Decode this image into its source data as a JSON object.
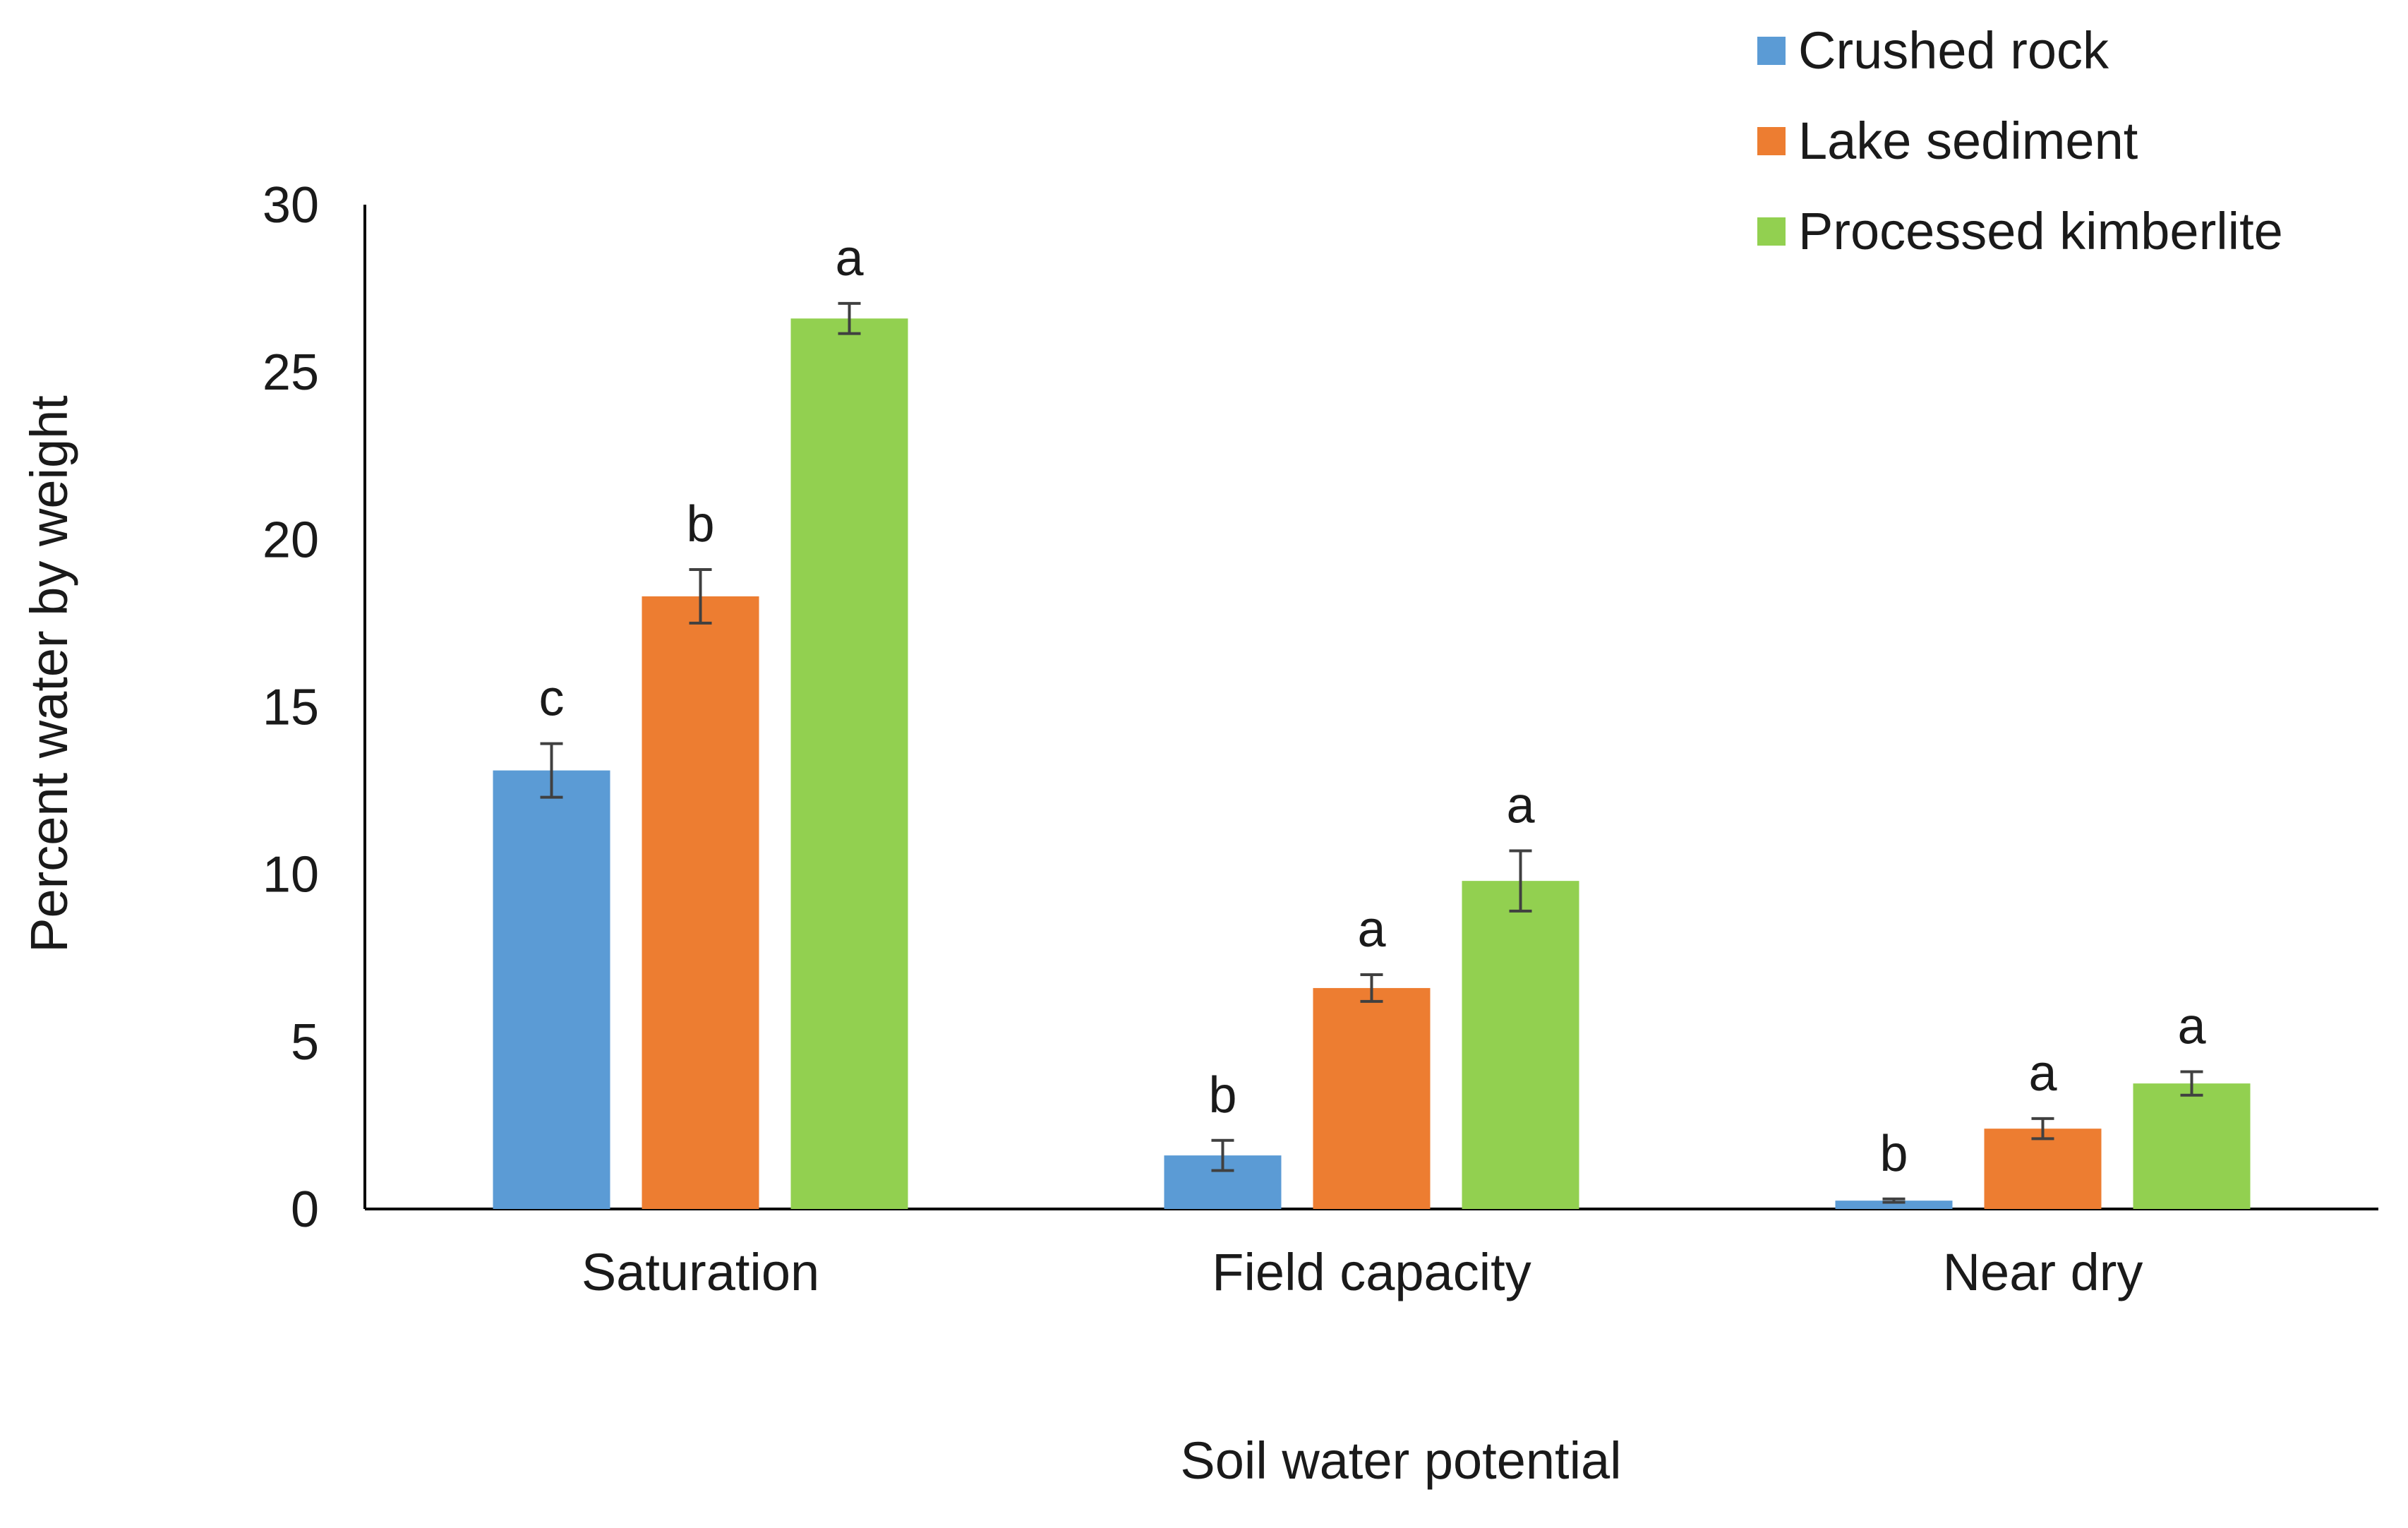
{
  "chart_data": {
    "type": "bar",
    "title": "",
    "xlabel": "Soil water potential",
    "ylabel": "Percent water by weight",
    "ylim": [
      0,
      30
    ],
    "yticks": [
      0,
      5,
      10,
      15,
      20,
      25,
      30
    ],
    "ytick_labels": [
      "0",
      "5",
      "10",
      "15",
      "20",
      "25",
      "30"
    ],
    "grid": false,
    "legend_position": "top-right",
    "categories": [
      "Saturation",
      "Field capacity",
      "Near dry"
    ],
    "series": [
      {
        "name": "Crushed rock",
        "color": "#5b9bd5",
        "values": [
          13.1,
          1.6,
          0.25
        ],
        "errors": [
          0.8,
          0.45,
          0.05
        ],
        "letters": [
          "c",
          "b",
          "b"
        ]
      },
      {
        "name": "Lake sediment",
        "color": "#ed7d31",
        "values": [
          18.3,
          6.6,
          2.4
        ],
        "errors": [
          0.8,
          0.4,
          0.3
        ],
        "letters": [
          "b",
          "a",
          "a"
        ]
      },
      {
        "name": "Processed kimberlite",
        "color": "#92d050",
        "values": [
          26.6,
          9.8,
          3.75
        ],
        "errors": [
          0.45,
          0.9,
          0.35
        ],
        "letters": [
          "a",
          "a",
          "a"
        ]
      }
    ]
  }
}
